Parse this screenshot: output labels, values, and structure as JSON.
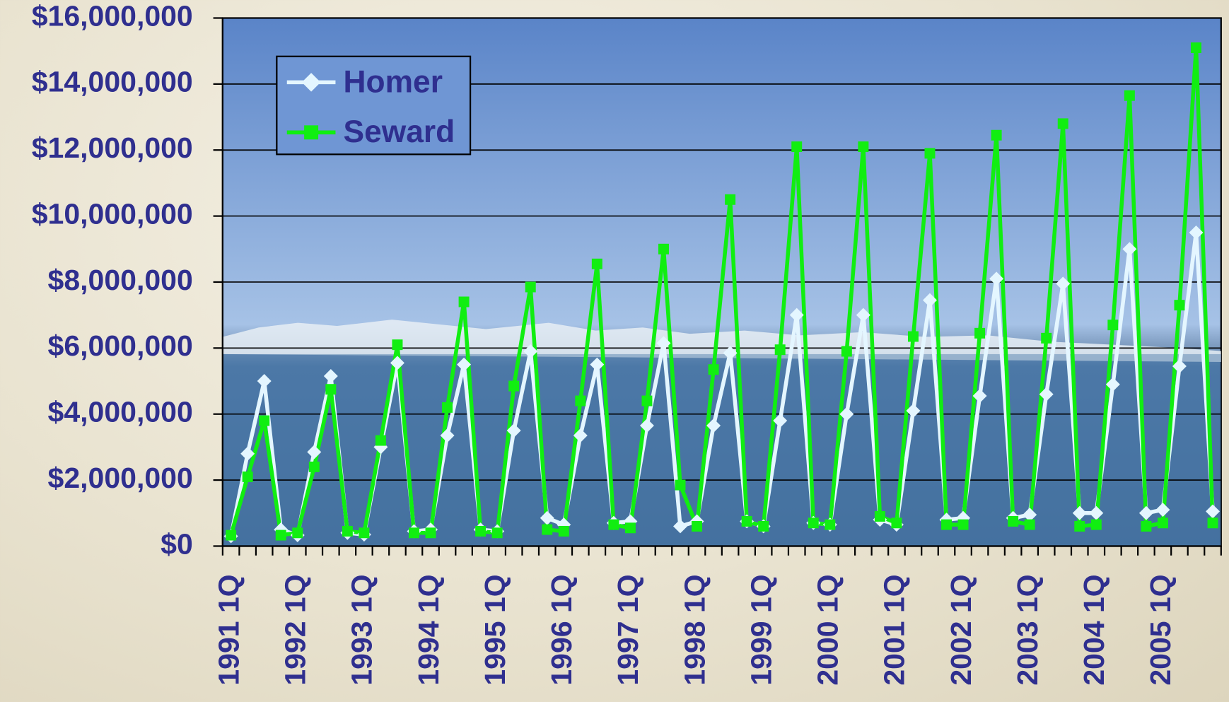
{
  "chart_data": {
    "type": "line",
    "categories": [
      "1991 1Q",
      null,
      null,
      null,
      "1992 1Q",
      null,
      null,
      null,
      "1993 1Q",
      null,
      null,
      null,
      "1994 1Q",
      null,
      null,
      null,
      "1995 1Q",
      null,
      null,
      null,
      "1996 1Q",
      null,
      null,
      null,
      "1997 1Q",
      null,
      null,
      null,
      "1998 1Q",
      null,
      null,
      null,
      "1999 1Q",
      null,
      null,
      null,
      "2000 1Q",
      null,
      null,
      null,
      "2001 1Q",
      null,
      null,
      null,
      "2002 1Q",
      null,
      null,
      null,
      "2003 1Q",
      null,
      null,
      null,
      "2004 1Q",
      null,
      null,
      null,
      "2005 1Q",
      null,
      null,
      null
    ],
    "series": [
      {
        "name": "Homer",
        "color": "#e4f6ff",
        "marker": "diamond",
        "values": [
          300000,
          2800000,
          5000000,
          500000,
          330000,
          2850000,
          5150000,
          400000,
          350000,
          3000000,
          5550000,
          450000,
          500000,
          3350000,
          5500000,
          500000,
          450000,
          3500000,
          5900000,
          850000,
          650000,
          3350000,
          5500000,
          700000,
          750000,
          3650000,
          6150000,
          600000,
          750000,
          3650000,
          5850000,
          750000,
          600000,
          3800000,
          7000000,
          700000,
          650000,
          4000000,
          7000000,
          800000,
          650000,
          4100000,
          7450000,
          800000,
          850000,
          4550000,
          8100000,
          850000,
          950000,
          4600000,
          7950000,
          1000000,
          1000000,
          4900000,
          9000000,
          1000000,
          1100000,
          5450000,
          9500000,
          1050000
        ]
      },
      {
        "name": "Seward",
        "color": "#11ee11",
        "marker": "square",
        "values": [
          330000,
          2100000,
          3800000,
          330000,
          400000,
          2400000,
          4750000,
          450000,
          400000,
          3200000,
          6100000,
          400000,
          400000,
          4200000,
          7400000,
          450000,
          400000,
          4850000,
          7850000,
          500000,
          450000,
          4400000,
          8550000,
          650000,
          550000,
          4400000,
          9000000,
          1850000,
          600000,
          5350000,
          10500000,
          750000,
          600000,
          5950000,
          12100000,
          700000,
          650000,
          5900000,
          12100000,
          900000,
          700000,
          6350000,
          11900000,
          650000,
          650000,
          6450000,
          12450000,
          750000,
          650000,
          6300000,
          12800000,
          600000,
          650000,
          6700000,
          13650000,
          600000,
          700000,
          7300000,
          15100000,
          700000
        ]
      }
    ],
    "ylim": [
      0,
      16000000
    ],
    "yticks": [
      {
        "value": 0,
        "label": "$0"
      },
      {
        "value": 2000000,
        "label": "$2,000,000"
      },
      {
        "value": 4000000,
        "label": "$4,000,000"
      },
      {
        "value": 6000000,
        "label": "$6,000,000"
      },
      {
        "value": 8000000,
        "label": "$8,000,000"
      },
      {
        "value": 10000000,
        "label": "$10,000,000"
      },
      {
        "value": 12000000,
        "label": "$12,000,000"
      },
      {
        "value": 14000000,
        "label": "$14,000,000"
      },
      {
        "value": 16000000,
        "label": "$16,000,000"
      }
    ],
    "grid": true,
    "legend": "upper left"
  }
}
